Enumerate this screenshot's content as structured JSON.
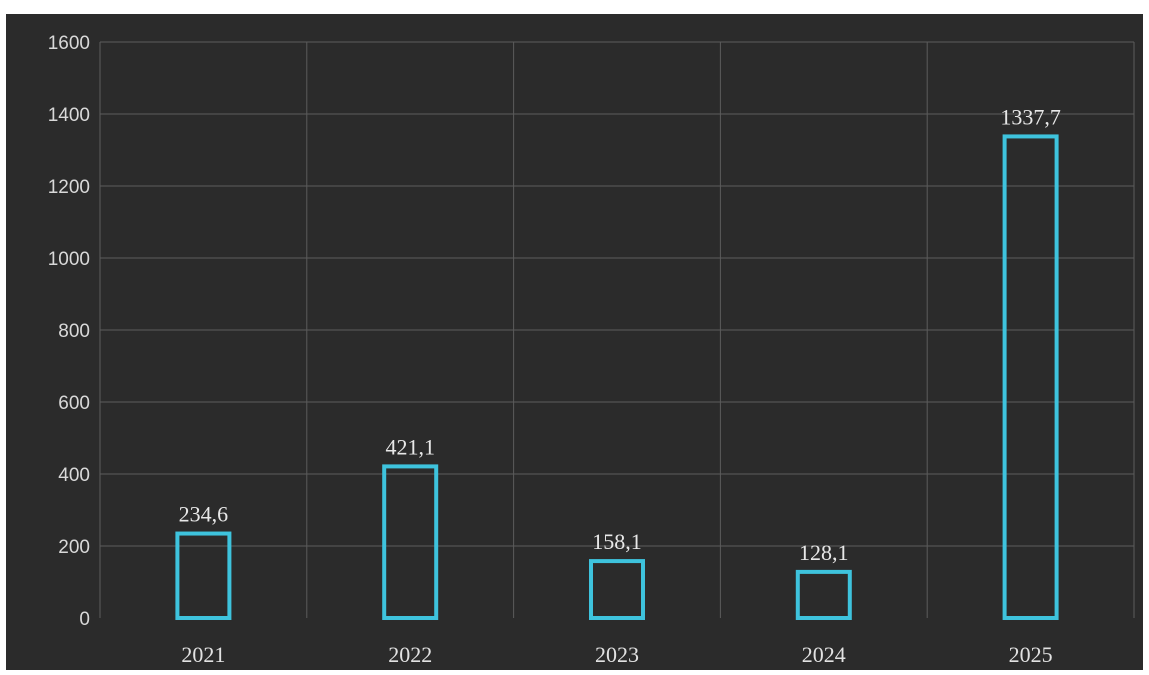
{
  "chart_data": {
    "type": "bar",
    "categories": [
      "2021",
      "2022",
      "2023",
      "2024",
      "2025"
    ],
    "values": [
      234.6,
      421.1,
      158.1,
      128.1,
      1337.7
    ],
    "data_labels": [
      "234,6",
      "421,1",
      "158,1",
      "128,1",
      "1337,7"
    ],
    "ylim": [
      0,
      1600
    ],
    "yticks": [
      0,
      200,
      400,
      600,
      800,
      1000,
      1200,
      1400,
      1600
    ],
    "title": "",
    "xlabel": "",
    "ylabel": "",
    "grid": true,
    "legend": "none",
    "colors": {
      "bar_outline": "#3ec3dd",
      "background": "#2b2b2b",
      "gridline": "#5c5c5c"
    }
  }
}
